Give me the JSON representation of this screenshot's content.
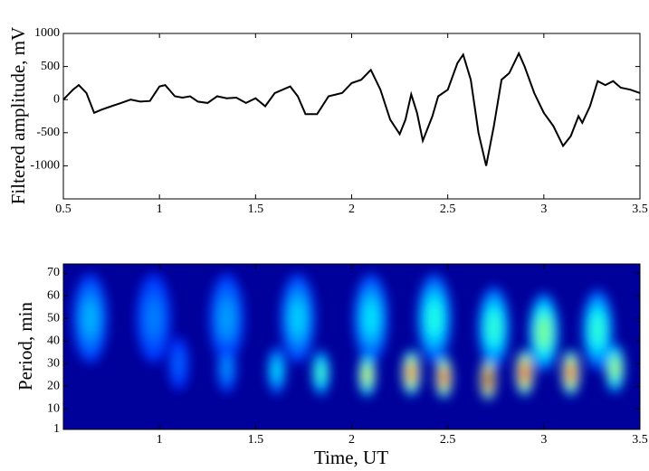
{
  "chart_data": [
    {
      "type": "line",
      "ylabel": "Filtered amplitude, mV",
      "color": "#000000",
      "x": [
        0.5,
        0.55,
        0.58,
        0.62,
        0.66,
        0.7,
        0.75,
        0.8,
        0.85,
        0.9,
        0.95,
        1.0,
        1.03,
        1.08,
        1.12,
        1.16,
        1.2,
        1.25,
        1.3,
        1.35,
        1.4,
        1.45,
        1.5,
        1.55,
        1.6,
        1.68,
        1.72,
        1.76,
        1.82,
        1.88,
        1.95,
        2.0,
        2.05,
        2.1,
        2.15,
        2.2,
        2.25,
        2.28,
        2.31,
        2.34,
        2.37,
        2.42,
        2.45,
        2.5,
        2.55,
        2.58,
        2.62,
        2.66,
        2.7,
        2.74,
        2.78,
        2.82,
        2.87,
        2.9,
        2.95,
        3.0,
        3.05,
        3.1,
        3.14,
        3.18,
        3.2,
        3.24,
        3.28,
        3.32,
        3.36,
        3.4,
        3.45,
        3.5
      ],
      "values": [
        0,
        150,
        220,
        100,
        -200,
        -150,
        -100,
        -50,
        0,
        -30,
        -20,
        200,
        220,
        50,
        30,
        50,
        -30,
        -50,
        50,
        20,
        30,
        -50,
        20,
        -100,
        100,
        200,
        50,
        -220,
        -220,
        50,
        100,
        250,
        300,
        450,
        150,
        -300,
        -520,
        -300,
        80,
        -200,
        -620,
        -250,
        50,
        150,
        550,
        680,
        300,
        -500,
        -1000,
        -400,
        300,
        400,
        700,
        500,
        100,
        -200,
        -400,
        -700,
        -550,
        -250,
        -350,
        -100,
        280,
        220,
        280,
        180,
        150,
        100
      ],
      "xlim": [
        0.5,
        3.5
      ],
      "xticks": [
        0.5,
        1,
        1.5,
        2,
        2.5,
        3,
        3.5
      ],
      "ylim": [
        -1500,
        1000
      ],
      "yticks": [
        -1000,
        -500,
        0,
        500,
        1000
      ]
    },
    {
      "type": "scalogram",
      "xlabel": "Time, UT",
      "ylabel": "Period, min",
      "xlim": [
        0.5,
        3.5
      ],
      "xticks": [
        1,
        1.5,
        2,
        2.5,
        3,
        3.5
      ],
      "ylim": [
        1,
        74
      ],
      "yticks": [
        1,
        10,
        20,
        30,
        40,
        50,
        60,
        70
      ],
      "peaks": [
        {
          "x": 0.64,
          "y": 50,
          "power": 0.3
        },
        {
          "x": 0.97,
          "y": 50,
          "power": 0.25
        },
        {
          "x": 1.35,
          "y": 50,
          "power": 0.28
        },
        {
          "x": 1.72,
          "y": 50,
          "power": 0.33
        },
        {
          "x": 2.1,
          "y": 50,
          "power": 0.35
        },
        {
          "x": 2.43,
          "y": 50,
          "power": 0.4
        },
        {
          "x": 2.74,
          "y": 46,
          "power": 0.42
        },
        {
          "x": 3.0,
          "y": 44,
          "power": 0.5
        },
        {
          "x": 3.28,
          "y": 45,
          "power": 0.42
        },
        {
          "x": 1.1,
          "y": 30,
          "power": 0.22
        },
        {
          "x": 1.35,
          "y": 28,
          "power": 0.27
        },
        {
          "x": 1.61,
          "y": 27,
          "power": 0.35
        },
        {
          "x": 1.84,
          "y": 26,
          "power": 0.45
        },
        {
          "x": 2.08,
          "y": 25,
          "power": 0.6
        },
        {
          "x": 2.31,
          "y": 26,
          "power": 0.78
        },
        {
          "x": 2.48,
          "y": 24,
          "power": 0.85
        },
        {
          "x": 2.71,
          "y": 23,
          "power": 1.0
        },
        {
          "x": 2.9,
          "y": 26,
          "power": 0.88
        },
        {
          "x": 3.14,
          "y": 26,
          "power": 0.82
        },
        {
          "x": 3.37,
          "y": 28,
          "power": 0.55
        }
      ]
    }
  ]
}
